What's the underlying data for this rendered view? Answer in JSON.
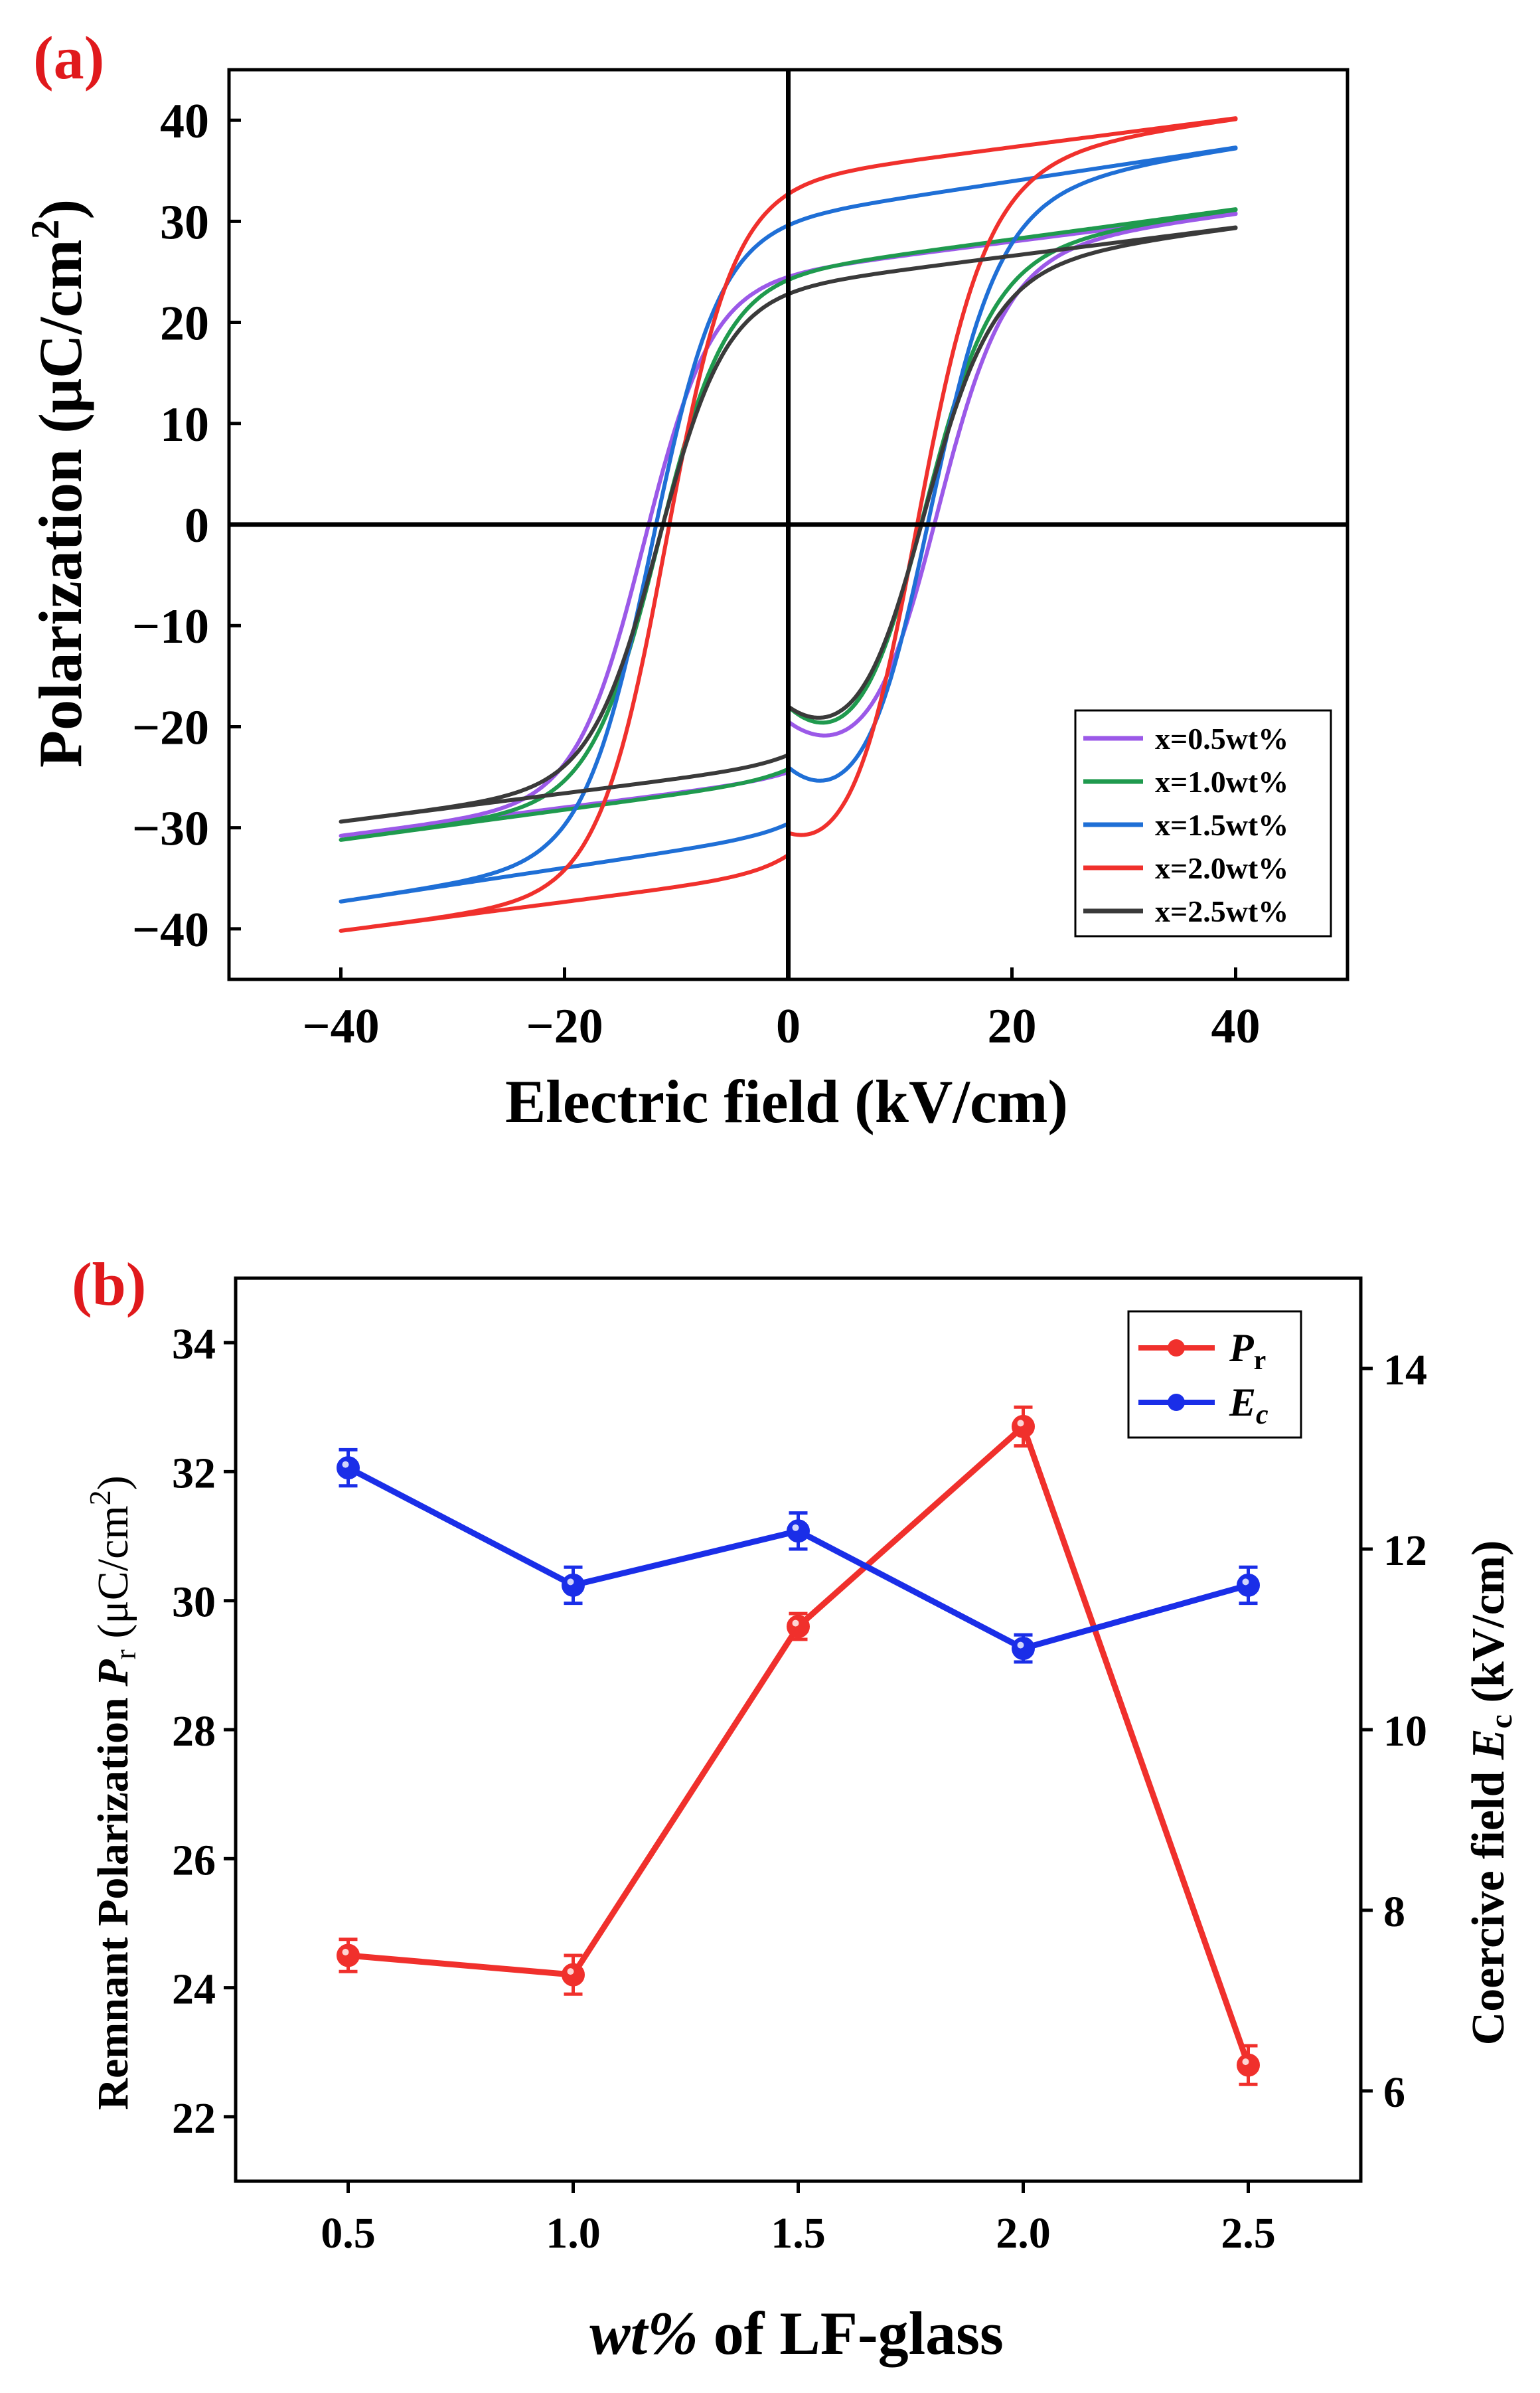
{
  "chart_data": [
    {
      "panel": "(a)",
      "type": "line",
      "title": "",
      "xlabel": "Electric field (kV/cm)",
      "ylabel_main": "Polarization (μC/cm",
      "ylabel_sup": "2",
      "ylabel_end": ")",
      "xlim": [
        -50,
        50
      ],
      "ylim": [
        -45,
        45
      ],
      "xticks": [
        -40,
        -20,
        0,
        20,
        40
      ],
      "xtick_labels": [
        "−40",
        "−20",
        "0",
        "20",
        "40"
      ],
      "yticks": [
        -40,
        -30,
        -20,
        -10,
        0,
        10,
        20,
        30,
        40
      ],
      "ytick_labels": [
        "−40",
        "−30",
        "−20",
        "−10",
        "0",
        "10",
        "20",
        "30",
        "40"
      ],
      "grid": false,
      "legend_position": "bottom-right",
      "series": [
        {
          "name": "x=0.5wt%",
          "color": "#9b59e8",
          "Emax": 40,
          "Pmax": 30.8,
          "Pr": 24.5,
          "Ec": 12.9,
          "Pstart": -19.5
        },
        {
          "name": "x=1.0wt%",
          "color": "#1f9a4e",
          "Emax": 40,
          "Pmax": 31.2,
          "Pr": 24.2,
          "Ec": 11.6,
          "Pstart": -18.0
        },
        {
          "name": "x=1.5wt%",
          "color": "#1f6fd6",
          "Emax": 40,
          "Pmax": 37.3,
          "Pr": 29.6,
          "Ec": 12.2,
          "Pstart": -24.0
        },
        {
          "name": "x=2.0wt%",
          "color": "#f0302c",
          "Emax": 40,
          "Pmax": 40.2,
          "Pr": 32.7,
          "Ec": 10.9,
          "Pstart": -30.5
        },
        {
          "name": "x=2.5wt%",
          "color": "#3a3a3a",
          "Emax": 40,
          "Pmax": 29.4,
          "Pr": 22.8,
          "Ec": 11.6,
          "Pstart": -18.0
        }
      ]
    },
    {
      "panel": "(b)",
      "type": "line",
      "title": "",
      "xlabel_italic": "wt%",
      "xlabel_rest": " of LF-glass",
      "ylabel_left": "Remnant Polarization",
      "ylabel_left_var": "P",
      "ylabel_left_sub": "r",
      "ylabel_left_unit": " (μC/cm",
      "ylabel_left_sup": "2",
      "ylabel_left_end": ")",
      "ylabel_right": "Coercive field",
      "ylabel_right_var": "E",
      "ylabel_right_sub": "c",
      "ylabel_right_unit": " (kV/cm)",
      "categories": [
        0.5,
        1.0,
        1.5,
        2.0,
        2.5
      ],
      "xtick_labels": [
        "0.5",
        "1.0",
        "1.5",
        "2.0",
        "2.5"
      ],
      "xlim": [
        0.25,
        2.75
      ],
      "ylim_left": [
        21,
        35
      ],
      "yticks_left": [
        22,
        24,
        26,
        28,
        30,
        32,
        34
      ],
      "ylim_right": [
        5,
        15
      ],
      "yticks_right": [
        6,
        8,
        10,
        12,
        14
      ],
      "legend_position": "top-right",
      "series": [
        {
          "name": "P",
          "name_sub": "r",
          "italic": true,
          "axis": "left",
          "color": "#f0302c",
          "values": [
            24.5,
            24.2,
            29.6,
            32.7,
            22.8
          ],
          "errors": [
            0.25,
            0.3,
            0.2,
            0.3,
            0.3
          ]
        },
        {
          "name": "E",
          "name_sub": "c",
          "italic": true,
          "axis": "right",
          "color": "#1a2ee8",
          "values": [
            12.9,
            11.6,
            12.2,
            10.9,
            11.6
          ],
          "errors": [
            0.2,
            0.2,
            0.2,
            0.15,
            0.2
          ]
        }
      ]
    }
  ]
}
